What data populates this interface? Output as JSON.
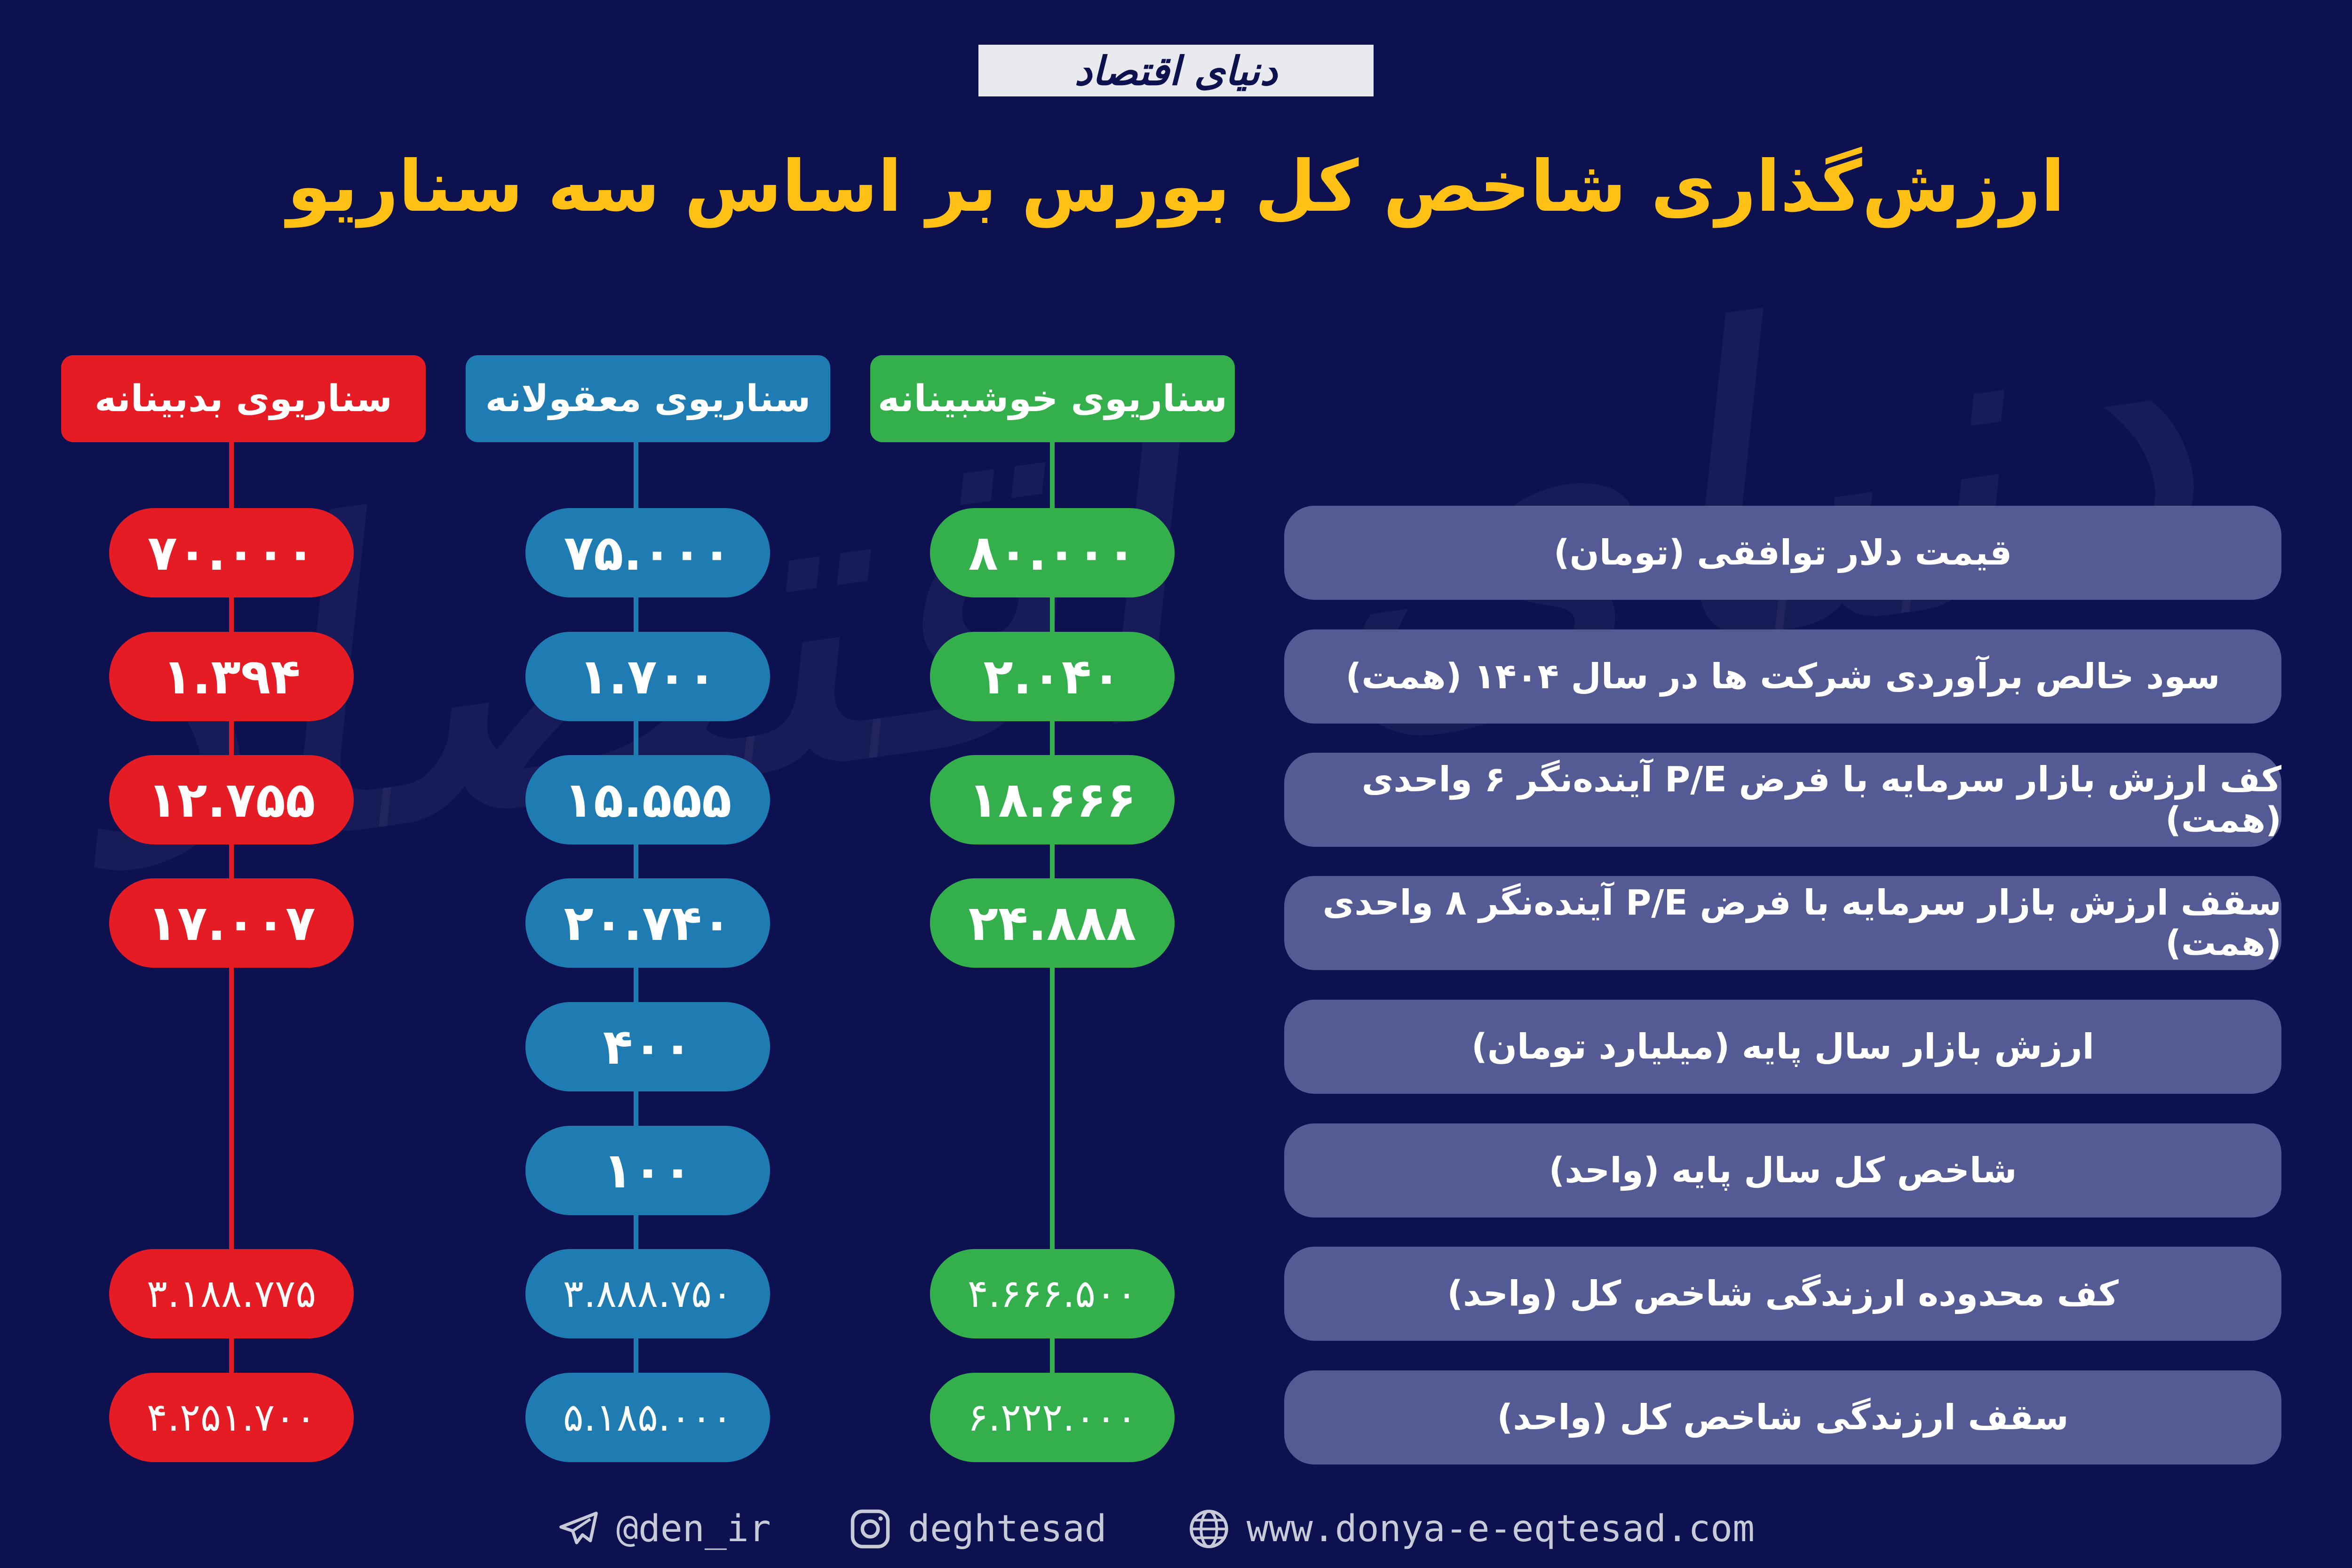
{
  "logo": "دنیای اقتصاد",
  "title": "ارزش‌گذاری شاخص کل بورس بر اساس سه سناریو",
  "colors": {
    "background": "#0d1150",
    "title": "#ffc115",
    "pessimistic": "#e51c24",
    "moderate": "#1f7cb2",
    "optimistic": "#33b04b",
    "row": "#545a93"
  },
  "scenarios": {
    "pessimistic": "سناریوی بدبینانه",
    "moderate": "سناریوی معقولانه",
    "optimistic": "سناریوی خوشبینانه"
  },
  "rows": [
    {
      "label": "قیمت دلار توافقی (تومان)",
      "pessimistic": "۷۰.۰۰۰",
      "moderate": "۷۵.۰۰۰",
      "optimistic": "۸۰.۰۰۰"
    },
    {
      "label": "سود خالص برآوردی شرکت ها در سال ۱۴۰۴ (همت)",
      "pessimistic": "۱.۳۹۴",
      "moderate": "۱.۷۰۰",
      "optimistic": "۲.۰۴۰"
    },
    {
      "label": "کف ارزش بازار سرمایه با فرض P/E آینده‌نگر ۶ واحدی (همت)",
      "pessimistic": "۱۲.۷۵۵",
      "moderate": "۱۵.۵۵۵",
      "optimistic": "۱۸.۶۶۶"
    },
    {
      "label": "سقف ارزش بازار سرمایه با فرض P/E آینده‌نگر ۸ واحدی (همت)",
      "pessimistic": "۱۷.۰۰۷",
      "moderate": "۲۰.۷۴۰",
      "optimistic": "۲۴.۸۸۸"
    },
    {
      "label": "ارزش بازار سال پایه (میلیارد تومان)",
      "moderate": "۴۰۰"
    },
    {
      "label": "شاخص کل سال پایه (واحد)",
      "moderate": "۱۰۰"
    },
    {
      "label": "کف محدوده ارزندگی شاخص کل (واحد)",
      "pessimistic": "۳.۱۸۸.۷۷۵",
      "moderate": "۳.۸۸۸.۷۵۰",
      "optimistic": "۴.۶۶۶.۵۰۰"
    },
    {
      "label": "سقف ارزندگی شاخص کل (واحد)",
      "pessimistic": "۴.۲۵۱.۷۰۰",
      "moderate": "۵.۱۸۵.۰۰۰",
      "optimistic": "۶.۲۲۲.۰۰۰"
    }
  ],
  "footer": {
    "telegram": "@den_ir",
    "instagram": "deghtesad",
    "website": "www.donya-e-eqtesad.com"
  }
}
